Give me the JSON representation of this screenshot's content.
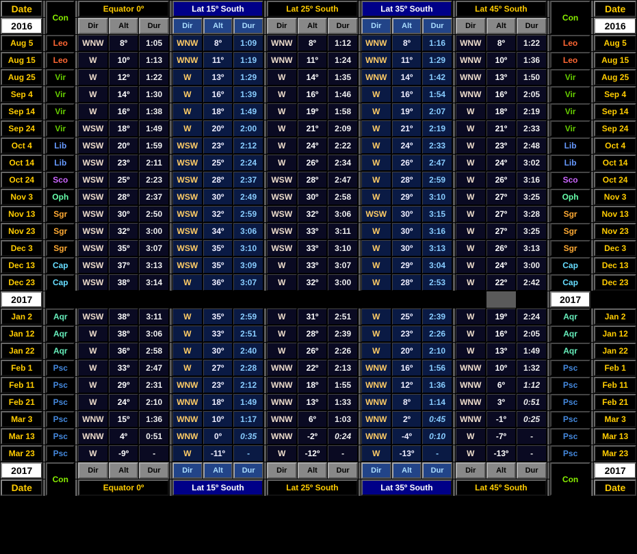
{
  "type": "table",
  "title_left": "Date",
  "title_right": "Date",
  "con_label": "Con",
  "years": [
    "2016",
    "2017"
  ],
  "latitudes": [
    {
      "label": "Equator 0º",
      "style": "orange"
    },
    {
      "label": "Lat 15º South",
      "style": "blue"
    },
    {
      "label": "Lat 25º South",
      "style": "orange"
    },
    {
      "label": "Lat 35º South",
      "style": "blue"
    },
    {
      "label": "Lat 45º South",
      "style": "orange"
    }
  ],
  "sub_headers": [
    "Dir",
    "Alt",
    "Dur"
  ],
  "colors": {
    "background": "#000000",
    "date_text": "#ffcc00",
    "year_bg": "#ffffff",
    "con_text": "#88ee00",
    "sub_hdr_bg": "#888888",
    "sub_hdr_blue_bg": "#224488",
    "blue_lat_bg": "#000088",
    "data_bg": "#0a0a22",
    "data_blue_bg": "#0a1a44",
    "dir_text": "#eeddcc",
    "dir_blue_text": "#ffcc66",
    "dur_blue_text": "#88ccff"
  },
  "rows_2016": [
    {
      "date": "Aug 5",
      "con": "Leo",
      "d": [
        [
          "WNW",
          "8º",
          "1:05"
        ],
        [
          "WNW",
          "8º",
          "1:09"
        ],
        [
          "WNW",
          "8º",
          "1:12"
        ],
        [
          "WNW",
          "8º",
          "1:16"
        ],
        [
          "WNW",
          "8º",
          "1:22"
        ]
      ]
    },
    {
      "date": "Aug 15",
      "con": "Leo",
      "d": [
        [
          "W",
          "10º",
          "1:13"
        ],
        [
          "WNW",
          "11º",
          "1:19"
        ],
        [
          "WNW",
          "11º",
          "1:24"
        ],
        [
          "WNW",
          "11º",
          "1:29"
        ],
        [
          "WNW",
          "10º",
          "1:36"
        ]
      ]
    },
    {
      "date": "Aug 25",
      "con": "Vir",
      "d": [
        [
          "W",
          "12º",
          "1:22"
        ],
        [
          "W",
          "13º",
          "1:29"
        ],
        [
          "W",
          "14º",
          "1:35"
        ],
        [
          "WNW",
          "14º",
          "1:42"
        ],
        [
          "WNW",
          "13º",
          "1:50"
        ]
      ]
    },
    {
      "date": "Sep 4",
      "con": "Vir",
      "d": [
        [
          "W",
          "14º",
          "1:30"
        ],
        [
          "W",
          "16º",
          "1:39"
        ],
        [
          "W",
          "16º",
          "1:46"
        ],
        [
          "W",
          "16º",
          "1:54"
        ],
        [
          "WNW",
          "16º",
          "2:05"
        ]
      ]
    },
    {
      "date": "Sep 14",
      "con": "Vir",
      "d": [
        [
          "W",
          "16º",
          "1:38"
        ],
        [
          "W",
          "18º",
          "1:49"
        ],
        [
          "W",
          "19º",
          "1:58"
        ],
        [
          "W",
          "19º",
          "2:07"
        ],
        [
          "W",
          "18º",
          "2:19"
        ]
      ]
    },
    {
      "date": "Sep 24",
      "con": "Vir",
      "d": [
        [
          "WSW",
          "18º",
          "1:49"
        ],
        [
          "W",
          "20º",
          "2:00"
        ],
        [
          "W",
          "21º",
          "2:09"
        ],
        [
          "W",
          "21º",
          "2:19"
        ],
        [
          "W",
          "21º",
          "2:33"
        ]
      ]
    },
    {
      "date": "Oct 4",
      "con": "Lib",
      "d": [
        [
          "WSW",
          "20º",
          "1:59"
        ],
        [
          "WSW",
          "23º",
          "2:12"
        ],
        [
          "W",
          "24º",
          "2:22"
        ],
        [
          "W",
          "24º",
          "2:33"
        ],
        [
          "W",
          "23º",
          "2:48"
        ]
      ]
    },
    {
      "date": "Oct 14",
      "con": "Lib",
      "d": [
        [
          "WSW",
          "23º",
          "2:11"
        ],
        [
          "WSW",
          "25º",
          "2:24"
        ],
        [
          "W",
          "26º",
          "2:34"
        ],
        [
          "W",
          "26º",
          "2:47"
        ],
        [
          "W",
          "24º",
          "3:02"
        ]
      ]
    },
    {
      "date": "Oct 24",
      "con": "Sco",
      "d": [
        [
          "WSW",
          "25º",
          "2:23"
        ],
        [
          "WSW",
          "28º",
          "2:37"
        ],
        [
          "WSW",
          "28º",
          "2:47"
        ],
        [
          "W",
          "28º",
          "2:59"
        ],
        [
          "W",
          "26º",
          "3:16"
        ]
      ]
    },
    {
      "date": "Nov 3",
      "con": "Oph",
      "d": [
        [
          "WSW",
          "28º",
          "2:37"
        ],
        [
          "WSW",
          "30º",
          "2:49"
        ],
        [
          "WSW",
          "30º",
          "2:58"
        ],
        [
          "W",
          "29º",
          "3:10"
        ],
        [
          "W",
          "27º",
          "3:25"
        ]
      ]
    },
    {
      "date": "Nov 13",
      "con": "Sgr",
      "d": [
        [
          "WSW",
          "30º",
          "2:50"
        ],
        [
          "WSW",
          "32º",
          "2:59"
        ],
        [
          "WSW",
          "32º",
          "3:06"
        ],
        [
          "WSW",
          "30º",
          "3:15"
        ],
        [
          "W",
          "27º",
          "3:28"
        ]
      ]
    },
    {
      "date": "Nov 23",
      "con": "Sgr",
      "d": [
        [
          "WSW",
          "32º",
          "3:00"
        ],
        [
          "WSW",
          "34º",
          "3:06"
        ],
        [
          "WSW",
          "33º",
          "3:11"
        ],
        [
          "W",
          "30º",
          "3:16"
        ],
        [
          "W",
          "27º",
          "3:25"
        ]
      ]
    },
    {
      "date": "Dec 3",
      "con": "Sgr",
      "d": [
        [
          "WSW",
          "35º",
          "3:07"
        ],
        [
          "WSW",
          "35º",
          "3:10"
        ],
        [
          "WSW",
          "33º",
          "3:10"
        ],
        [
          "W",
          "30º",
          "3:13"
        ],
        [
          "W",
          "26º",
          "3:13"
        ]
      ]
    },
    {
      "date": "Dec 13",
      "con": "Cap",
      "d": [
        [
          "WSW",
          "37º",
          "3:13"
        ],
        [
          "WSW",
          "35º",
          "3:09"
        ],
        [
          "W",
          "33º",
          "3:07"
        ],
        [
          "W",
          "29º",
          "3:04"
        ],
        [
          "W",
          "24º",
          "3:00"
        ]
      ]
    },
    {
      "date": "Dec 23",
      "con": "Cap",
      "d": [
        [
          "WSW",
          "38º",
          "3:14"
        ],
        [
          "W",
          "36º",
          "3:07"
        ],
        [
          "W",
          "32º",
          "3:00"
        ],
        [
          "W",
          "28º",
          "2:53"
        ],
        [
          "W",
          "22º",
          "2:42"
        ]
      ]
    }
  ],
  "rows_2017": [
    {
      "date": "Jan 2",
      "con": "Aqr",
      "d": [
        [
          "WSW",
          "38º",
          "3:11"
        ],
        [
          "W",
          "35º",
          "2:59"
        ],
        [
          "W",
          "31º",
          "2:51"
        ],
        [
          "W",
          "25º",
          "2:39"
        ],
        [
          "W",
          "19º",
          "2:24"
        ]
      ]
    },
    {
      "date": "Jan 12",
      "con": "Aqr",
      "d": [
        [
          "W",
          "38º",
          "3:06"
        ],
        [
          "W",
          "33º",
          "2:51"
        ],
        [
          "W",
          "28º",
          "2:39"
        ],
        [
          "W",
          "23º",
          "2:26"
        ],
        [
          "W",
          "16º",
          "2:05"
        ]
      ]
    },
    {
      "date": "Jan 22",
      "con": "Aqr",
      "d": [
        [
          "W",
          "36º",
          "2:58"
        ],
        [
          "W",
          "30º",
          "2:40"
        ],
        [
          "W",
          "26º",
          "2:26"
        ],
        [
          "W",
          "20º",
          "2:10"
        ],
        [
          "W",
          "13º",
          "1:49"
        ]
      ]
    },
    {
      "date": "Feb 1",
      "con": "Psc",
      "d": [
        [
          "W",
          "33º",
          "2:47"
        ],
        [
          "W",
          "27º",
          "2:28"
        ],
        [
          "WNW",
          "22º",
          "2:13"
        ],
        [
          "WNW",
          "16º",
          "1:56"
        ],
        [
          "WNW",
          "10º",
          "1:32"
        ]
      ]
    },
    {
      "date": "Feb 11",
      "con": "Psc",
      "d": [
        [
          "W",
          "29º",
          "2:31"
        ],
        [
          "WNW",
          "23º",
          "2:12"
        ],
        [
          "WNW",
          "18º",
          "1:55"
        ],
        [
          "WNW",
          "12º",
          "1:36"
        ],
        [
          "WNW",
          "6º",
          "1:12",
          "i"
        ]
      ]
    },
    {
      "date": "Feb 21",
      "con": "Psc",
      "d": [
        [
          "W",
          "24º",
          "2:10"
        ],
        [
          "WNW",
          "18º",
          "1:49"
        ],
        [
          "WNW",
          "13º",
          "1:33"
        ],
        [
          "WNW",
          "8º",
          "1:14"
        ],
        [
          "WNW",
          "3º",
          "0:51",
          "i"
        ]
      ]
    },
    {
      "date": "Mar 3",
      "con": "Psc",
      "d": [
        [
          "WNW",
          "15º",
          "1:36"
        ],
        [
          "WNW",
          "10º",
          "1:17"
        ],
        [
          "WNW",
          "6º",
          "1:03"
        ],
        [
          "WNW",
          "2º",
          "0:45",
          "i"
        ],
        [
          "WNW",
          "-1º",
          "0:25",
          "i"
        ]
      ]
    },
    {
      "date": "Mar 13",
      "con": "Psc",
      "d": [
        [
          "WNW",
          "4º",
          "0:51"
        ],
        [
          "WNW",
          "0º",
          "0:35",
          "i"
        ],
        [
          "WNW",
          "-2º",
          "0:24",
          "i"
        ],
        [
          "WNW",
          "-4º",
          "0:10",
          "i"
        ],
        [
          "W",
          "-7º",
          "-"
        ]
      ]
    },
    {
      "date": "Mar 23",
      "con": "Psc",
      "d": [
        [
          "W",
          "-9º",
          "-"
        ],
        [
          "W",
          "-11º",
          "-"
        ],
        [
          "W",
          "-12º",
          "-"
        ],
        [
          "W",
          "-13º",
          "-"
        ],
        [
          "W",
          "-13º",
          "-"
        ]
      ]
    }
  ]
}
